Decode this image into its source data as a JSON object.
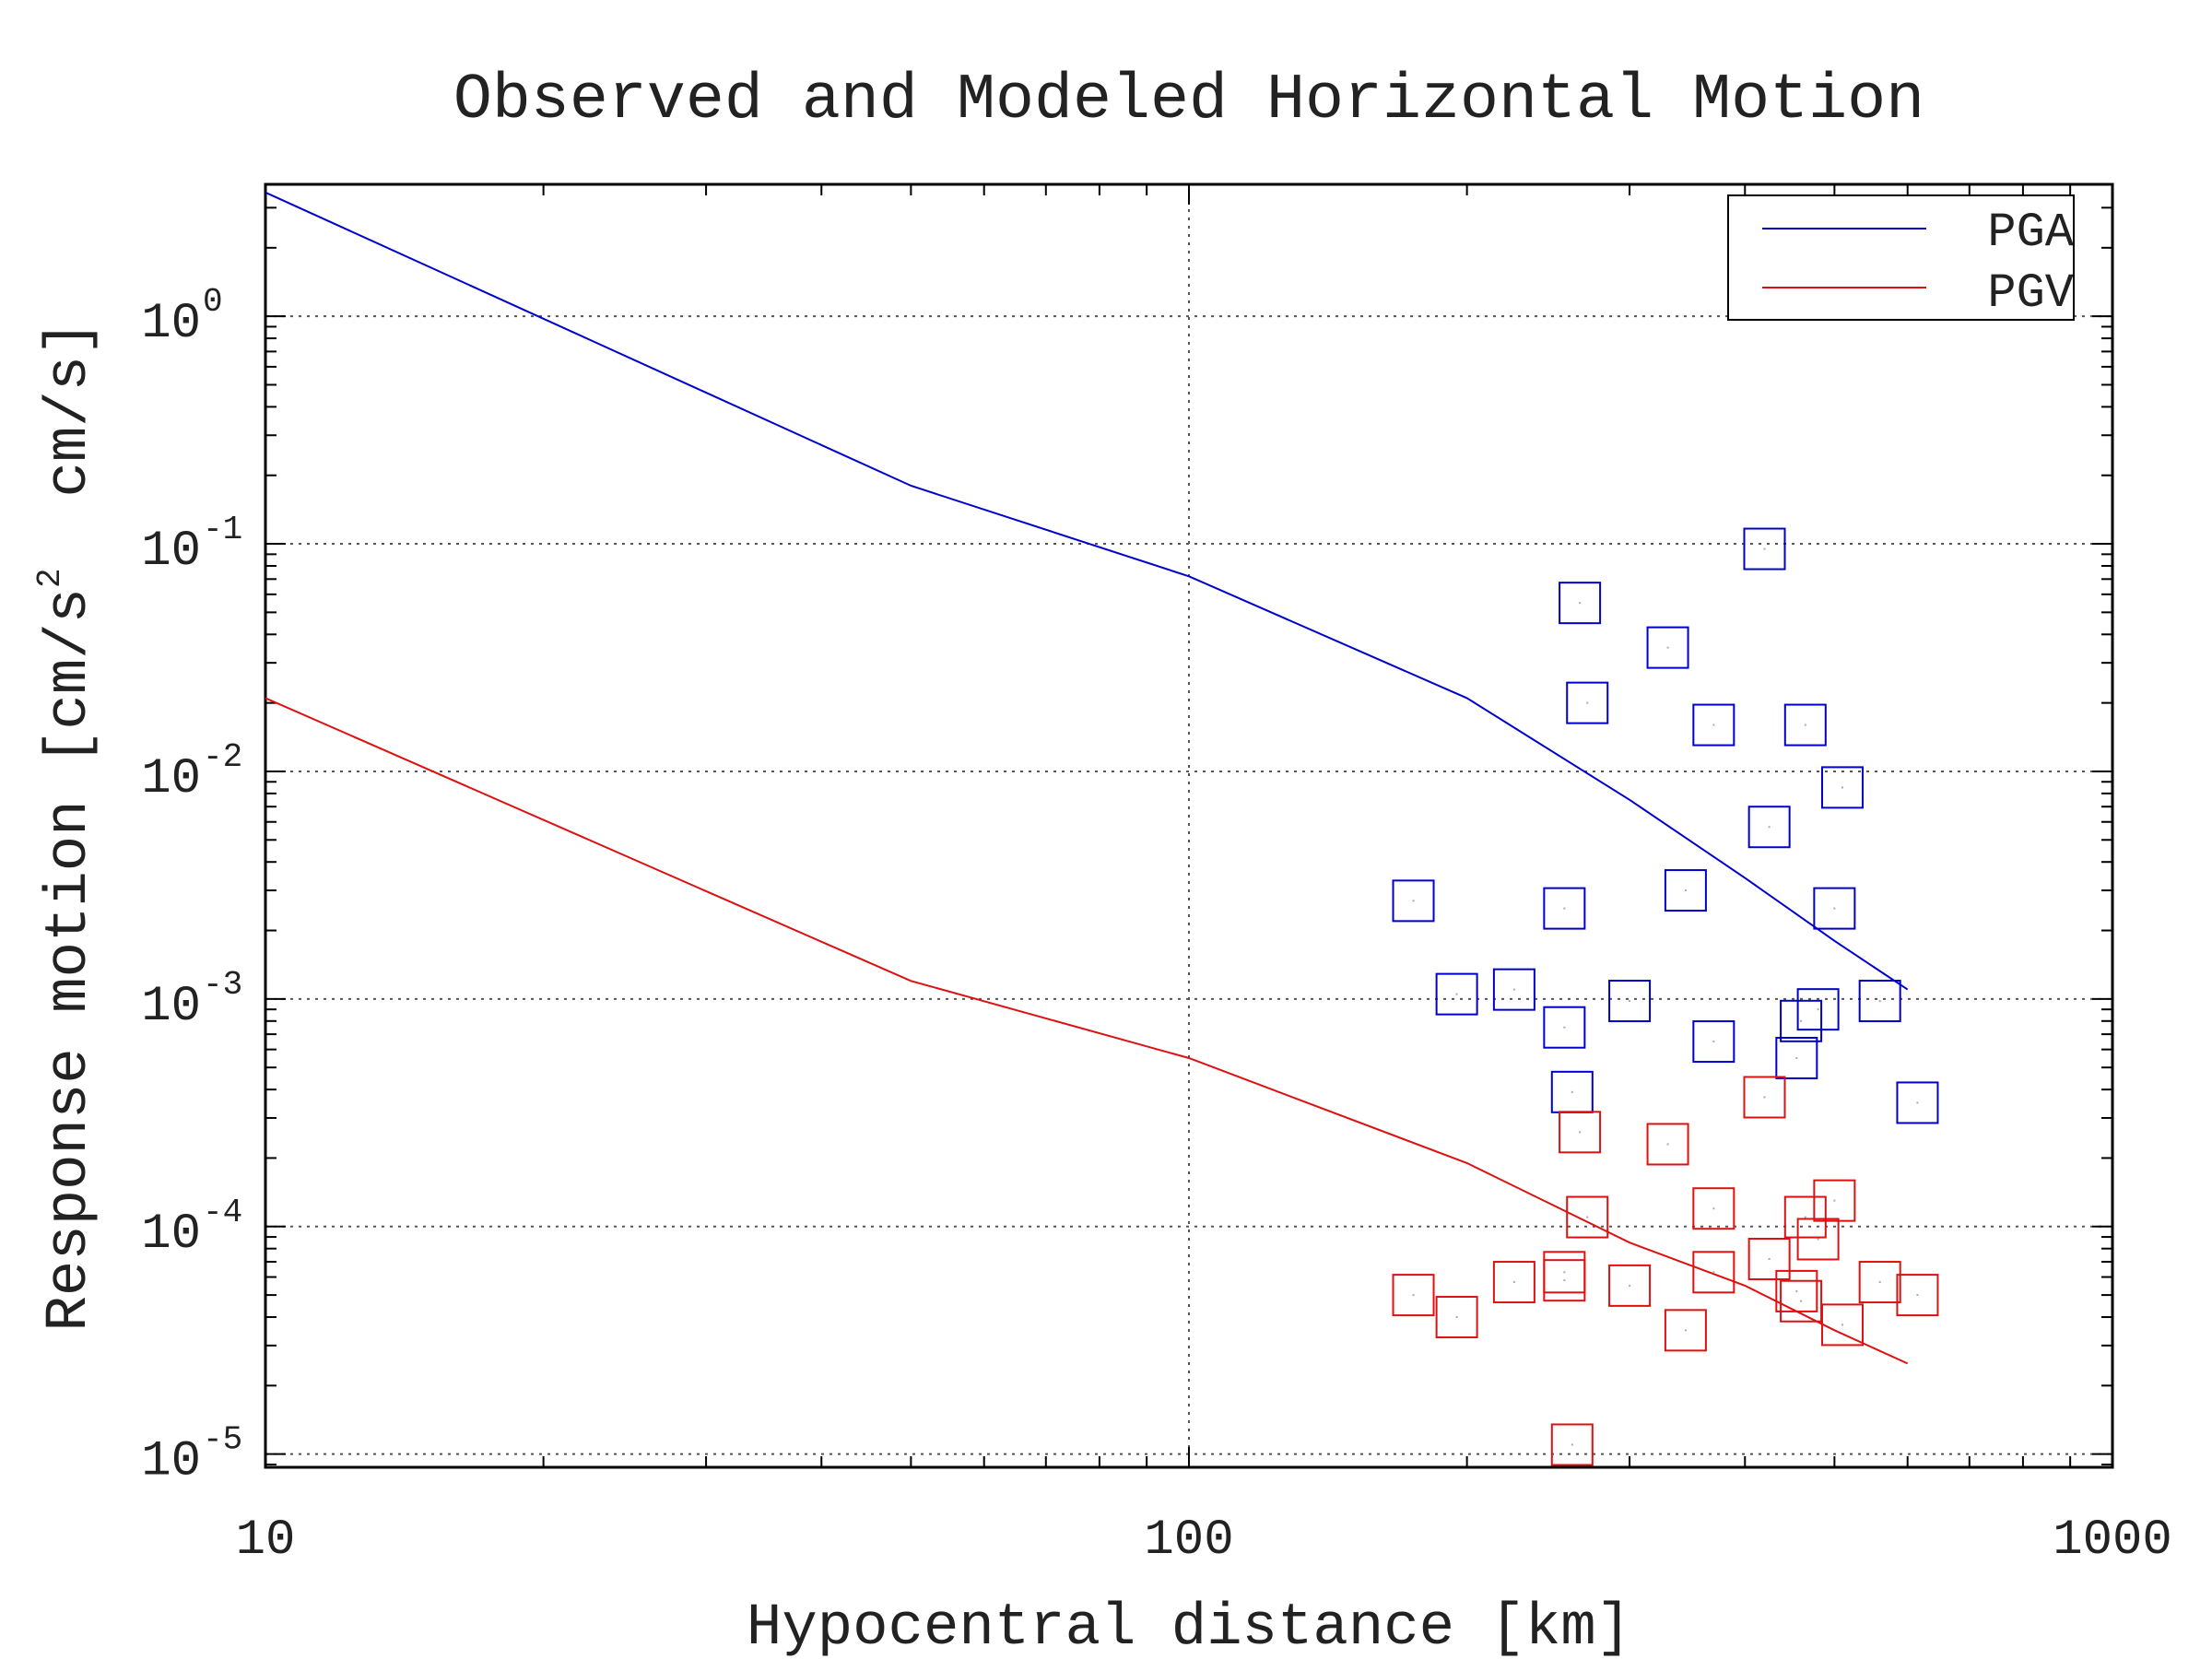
{
  "chart_data": {
    "type": "scatter",
    "title": "Observed and Modeled Horizontal Motion",
    "xlabel": "Hypocentral distance [km]",
    "ylabel": "Response motion [cm/s",
    "ylabel_exp": "2",
    "ylabel_tail": "  cm/s]",
    "x_scale": "log",
    "y_scale": "log",
    "xlim": [
      10,
      1000
    ],
    "ylim": [
      8.75e-06,
      3.8
    ],
    "grid": true,
    "legend_position": "top-right",
    "x_ticks": [
      {
        "value": 10,
        "label": "10"
      },
      {
        "value": 100,
        "label": "100"
      },
      {
        "value": 1000,
        "label": "1000"
      }
    ],
    "y_ticks": [
      {
        "value": 1,
        "base": "10",
        "exp": "0"
      },
      {
        "value": 0.1,
        "base": "10",
        "exp": "-1"
      },
      {
        "value": 0.01,
        "base": "10",
        "exp": "-2"
      },
      {
        "value": 0.001,
        "base": "10",
        "exp": "-3"
      },
      {
        "value": 0.0001,
        "base": "10",
        "exp": "-4"
      },
      {
        "value": 1e-05,
        "base": "10",
        "exp": "-5"
      }
    ],
    "series": [
      {
        "name": "PGA",
        "color": "#0000cc",
        "model": [
          [
            10,
            3.5
          ],
          [
            50,
            0.18
          ],
          [
            100,
            0.072
          ],
          [
            200,
            0.021
          ],
          [
            300,
            0.0075
          ],
          [
            400,
            0.0034
          ],
          [
            500,
            0.0018
          ],
          [
            600,
            0.0011
          ]
        ],
        "observed": [
          [
            175,
            0.0027
          ],
          [
            195,
            0.00105
          ],
          [
            225,
            0.0011
          ],
          [
            255,
            0.0025
          ],
          [
            255,
            0.00075
          ],
          [
            260,
            0.00039
          ],
          [
            265,
            0.055
          ],
          [
            270,
            0.02
          ],
          [
            300,
            0.00098
          ],
          [
            330,
            0.035
          ],
          [
            345,
            0.003
          ],
          [
            370,
            0.016
          ],
          [
            370,
            0.00065
          ],
          [
            420,
            0.095
          ],
          [
            425,
            0.0057
          ],
          [
            455,
            0.00055
          ],
          [
            460,
            0.0008
          ],
          [
            465,
            0.016
          ],
          [
            480,
            0.0009
          ],
          [
            500,
            0.0025
          ],
          [
            510,
            0.0085
          ],
          [
            560,
            0.00098
          ],
          [
            615,
            0.00035
          ]
        ]
      },
      {
        "name": "PGV",
        "color": "#dd1111",
        "model": [
          [
            10,
            0.021
          ],
          [
            50,
            0.0012
          ],
          [
            100,
            0.00055
          ],
          [
            200,
            0.00019
          ],
          [
            300,
            8.5e-05
          ],
          [
            400,
            5.5e-05
          ],
          [
            500,
            3.5e-05
          ],
          [
            600,
            2.5e-05
          ]
        ],
        "observed": [
          [
            175,
            5e-05
          ],
          [
            195,
            4e-05
          ],
          [
            225,
            5.7e-05
          ],
          [
            255,
            6.3e-05
          ],
          [
            255,
            5.8e-05
          ],
          [
            260,
            1.1e-05
          ],
          [
            265,
            0.00026
          ],
          [
            270,
            0.00011
          ],
          [
            300,
            5.5e-05
          ],
          [
            330,
            0.00023
          ],
          [
            345,
            3.5e-05
          ],
          [
            370,
            0.00012
          ],
          [
            370,
            6.3e-05
          ],
          [
            420,
            0.00037
          ],
          [
            425,
            7.2e-05
          ],
          [
            455,
            5.2e-05
          ],
          [
            460,
            4.7e-05
          ],
          [
            465,
            0.00011
          ],
          [
            480,
            8.8e-05
          ],
          [
            500,
            0.00013
          ],
          [
            510,
            3.7e-05
          ],
          [
            560,
            5.7e-05
          ],
          [
            615,
            5e-05
          ]
        ]
      }
    ]
  }
}
